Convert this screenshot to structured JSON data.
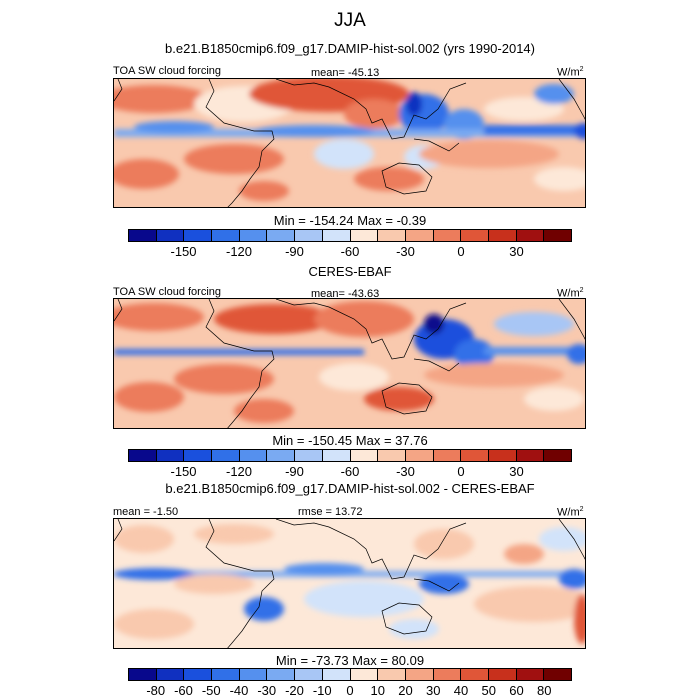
{
  "figure": {
    "season": "JJA",
    "model_title": "b.e21.B1850cmip6.f09_g17.DAMIP-hist-sol.002 (yrs 1990-2014)",
    "obs_title": "CERES-EBAF",
    "diff_title": "b.e21.B1850cmip6.f09_g17.DAMIP-hist-sol.002 - CERES-EBAF"
  },
  "panels": [
    {
      "variable": "TOA SW cloud forcing",
      "stat": "mean= -45.13",
      "units": "W/m",
      "units_sup": "2",
      "minmax": "Min = -154.24 Max =  -0.39"
    },
    {
      "variable": "TOA SW cloud forcing",
      "stat": "mean= -43.63",
      "units": "W/m",
      "units_sup": "2",
      "minmax": "Min = -150.45 Max =  37.76"
    },
    {
      "variable": "mean =  -1.50",
      "stat": "rmse =  13.72",
      "units": "W/m",
      "units_sup": "2",
      "minmax": "Min = -73.73 Max =  80.09"
    }
  ],
  "colorbars": {
    "main": {
      "colors": [
        "#08088c",
        "#1030c0",
        "#1a50dd",
        "#3070e8",
        "#5590ee",
        "#7aaaf2",
        "#a8c6f5",
        "#d2e3fa",
        "#fde8d8",
        "#f9c9ae",
        "#f4a585",
        "#ec7c5c",
        "#e05638",
        "#c8301c",
        "#a01010",
        "#700000"
      ],
      "tick_labels": [
        "-150",
        "-120",
        "-90",
        "-60",
        "-30",
        "0",
        "30"
      ]
    },
    "diff": {
      "colors": [
        "#08088c",
        "#1030c0",
        "#1a50dd",
        "#3070e8",
        "#5590ee",
        "#7aaaf2",
        "#a8c6f5",
        "#d2e3fa",
        "#fde8d8",
        "#f9c9ae",
        "#f4a585",
        "#ec7c5c",
        "#e05638",
        "#c8301c",
        "#a01010",
        "#700000"
      ],
      "tick_labels": [
        "-80",
        "-60",
        "-50",
        "-40",
        "-30",
        "-20",
        "-10",
        "0",
        "10",
        "20",
        "30",
        "40",
        "50",
        "60",
        "80"
      ]
    }
  },
  "chart_data": [
    {
      "type": "heatmap",
      "title": "TOA SW cloud forcing",
      "subtitle": "b.e21.B1850cmip6.f09_g17.DAMIP-hist-sol.002 (yrs 1990-2014)",
      "mean": -45.13,
      "min": -154.24,
      "max": -0.39,
      "units": "W/m2",
      "levels": [
        -150,
        -135,
        -120,
        -105,
        -90,
        -75,
        -60,
        -45,
        -30,
        -15,
        0,
        15,
        30,
        45,
        60
      ]
    },
    {
      "type": "heatmap",
      "title": "TOA SW cloud forcing",
      "subtitle": "CERES-EBAF",
      "mean": -43.63,
      "min": -150.45,
      "max": 37.76,
      "units": "W/m2",
      "levels": [
        -150,
        -135,
        -120,
        -105,
        -90,
        -75,
        -60,
        -45,
        -30,
        -15,
        0,
        15,
        30,
        45,
        60
      ]
    },
    {
      "type": "heatmap",
      "subtitle": "b.e21.B1850cmip6.f09_g17.DAMIP-hist-sol.002 - CERES-EBAF",
      "mean": -1.5,
      "rmse": 13.72,
      "min": -73.73,
      "max": 80.09,
      "units": "W/m2",
      "levels": [
        -80,
        -60,
        -50,
        -40,
        -30,
        -20,
        -10,
        0,
        10,
        20,
        30,
        40,
        50,
        60,
        80
      ]
    }
  ]
}
